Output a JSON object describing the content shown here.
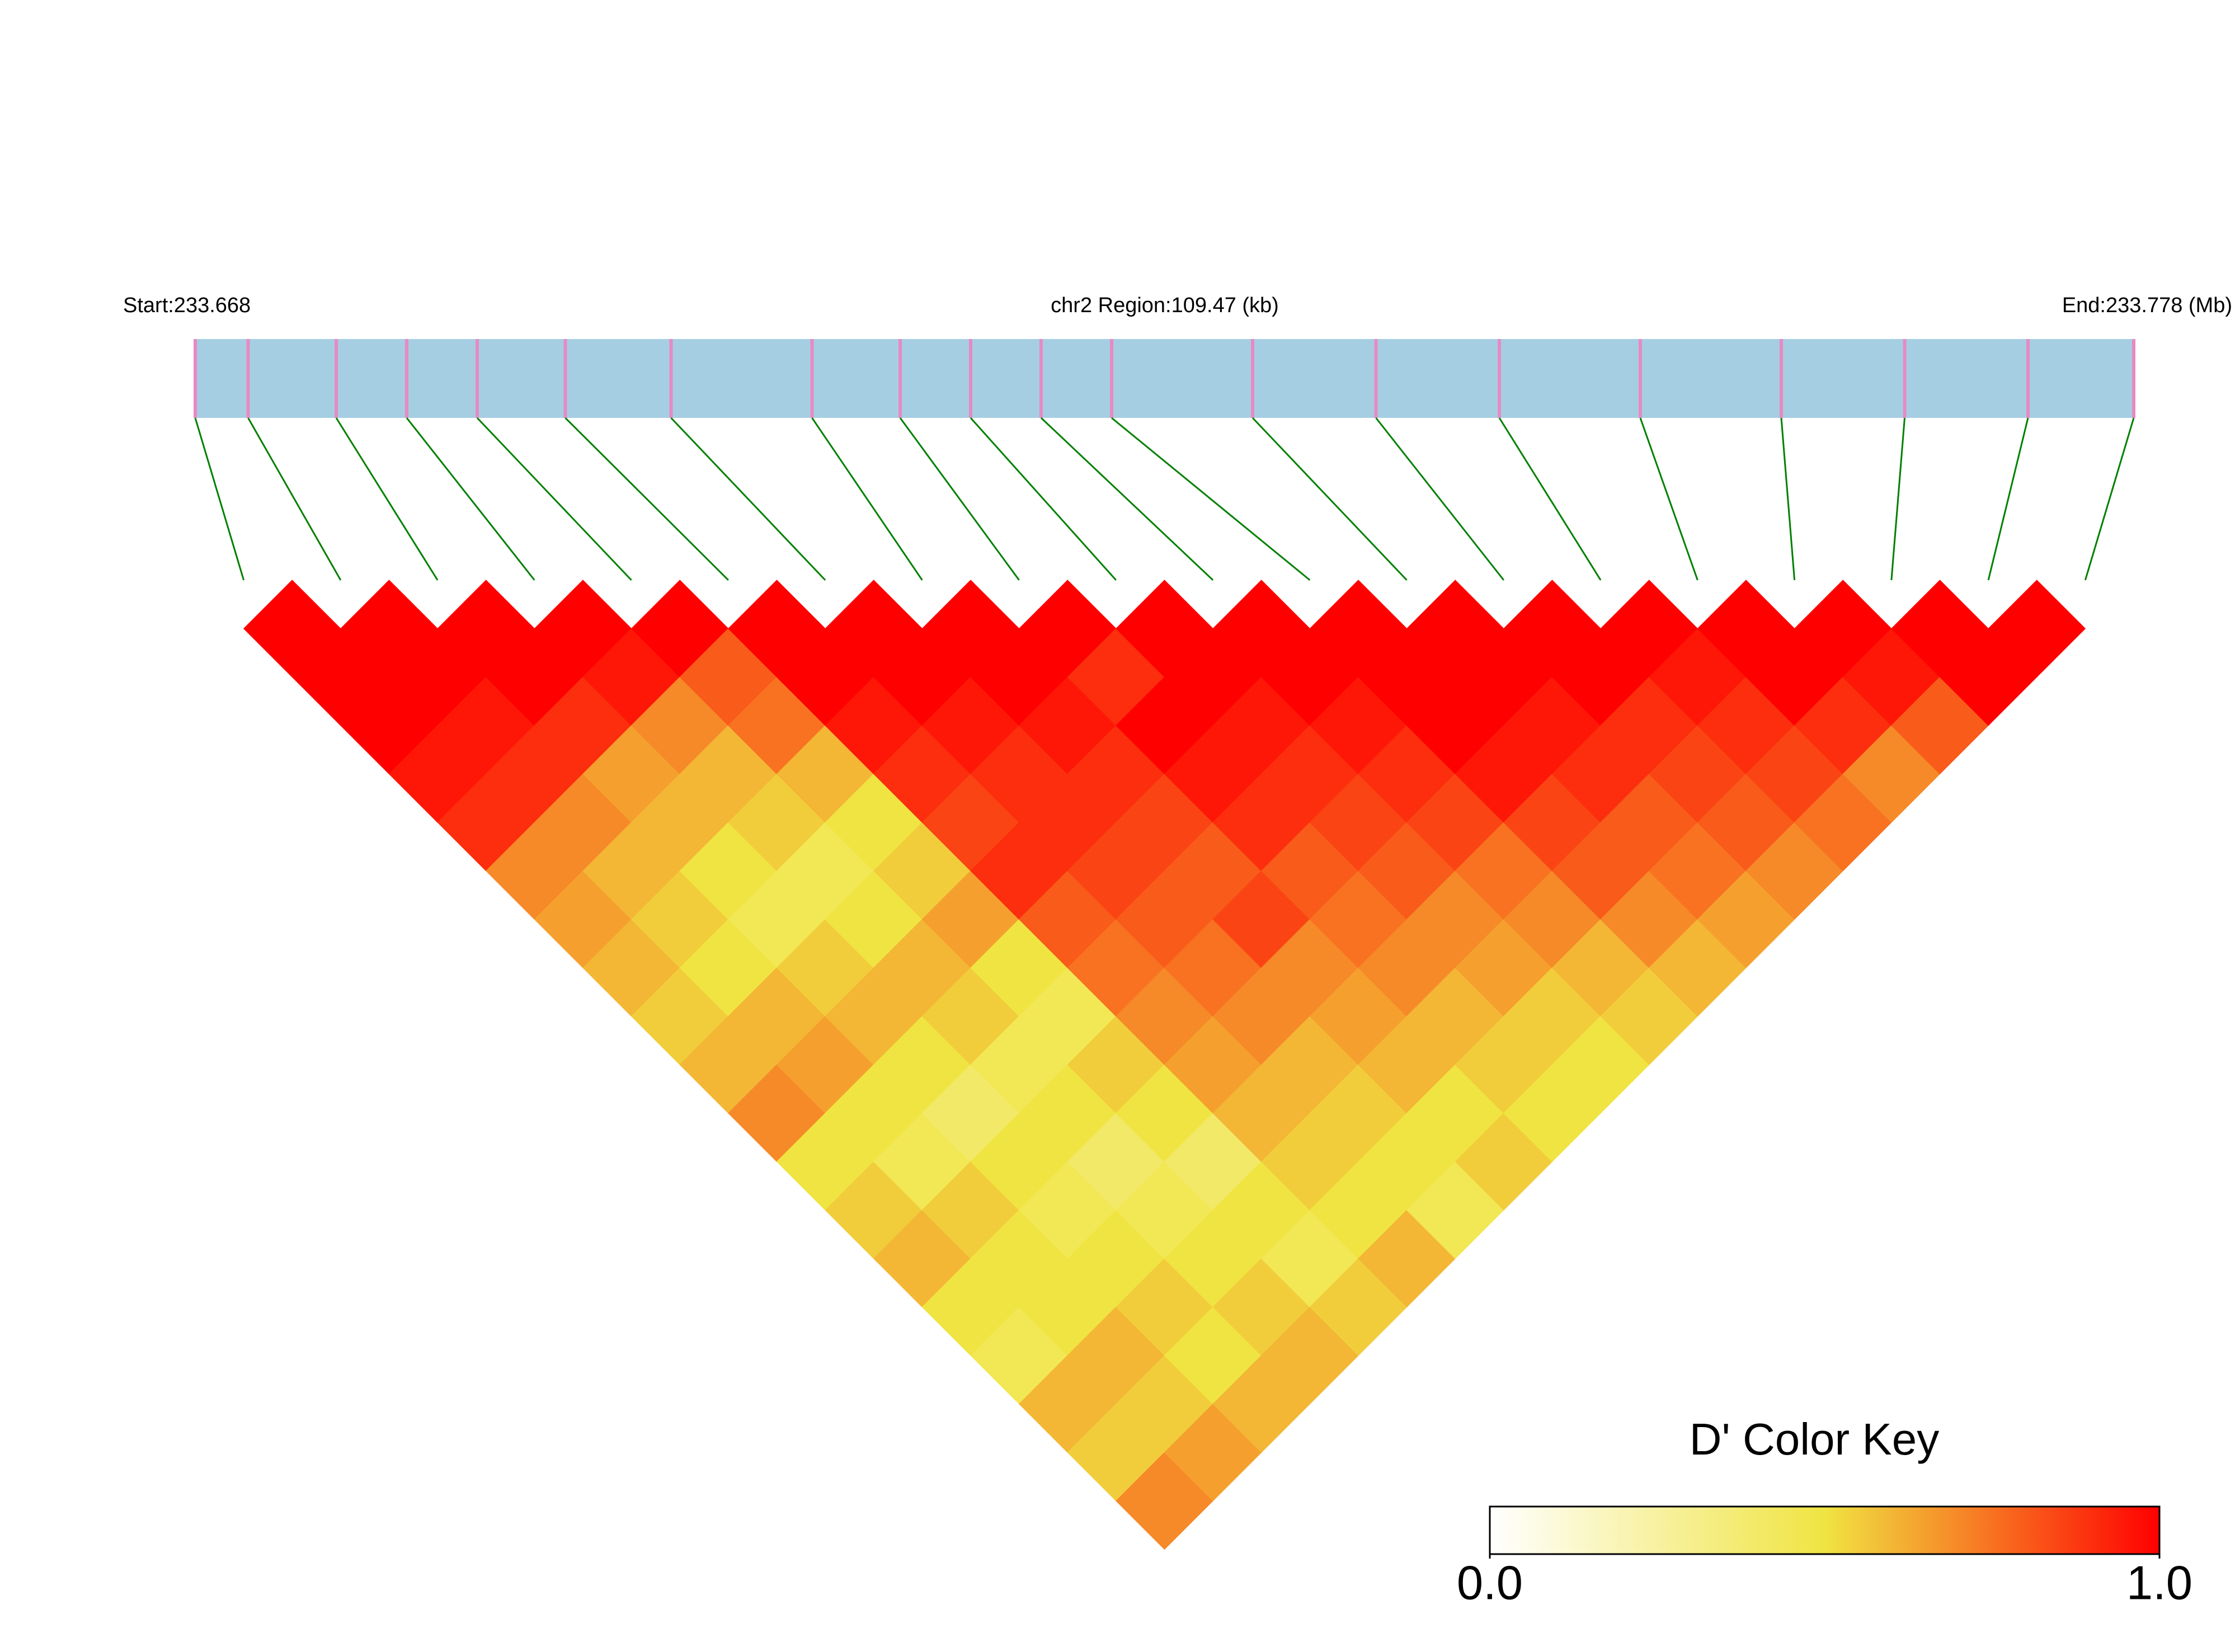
{
  "chart_data": {
    "type": "ld-heatmap",
    "start_label": "Start:233.668",
    "region_label": "chr2 Region:109.47 (kb)",
    "end_label": "End:233.778 (Mb)",
    "key_title": "D' Color Key",
    "xlim": [
      233.668,
      233.778
    ],
    "positions": [
      233.668,
      233.671,
      233.676,
      233.68,
      233.684,
      233.689,
      233.695,
      233.703,
      233.708,
      233.712,
      233.716,
      233.72,
      233.728,
      233.735,
      233.742,
      233.75,
      233.758,
      233.765,
      233.772,
      233.778
    ],
    "values": [
      [
        1,
        1,
        1,
        0.95,
        0.9,
        0.7,
        0.65,
        0.6,
        0.55,
        0.6,
        0.7,
        0.5,
        0.55,
        0.6,
        0.5,
        0.45,
        0.6,
        0.55,
        0.7
      ],
      [
        1,
        1,
        0.95,
        0.9,
        0.7,
        0.6,
        0.55,
        0.5,
        0.6,
        0.65,
        0.5,
        0.45,
        0.55,
        0.5,
        0.5,
        0.6,
        0.55,
        0.65
      ],
      [
        1,
        1,
        0.9,
        0.65,
        0.6,
        0.5,
        0.45,
        0.55,
        0.6,
        0.5,
        0.4,
        0.5,
        0.45,
        0.5,
        0.55,
        0.5,
        0.6
      ],
      [
        1,
        0.95,
        0.7,
        0.6,
        0.55,
        0.45,
        0.5,
        0.6,
        0.55,
        0.45,
        0.5,
        0.4,
        0.45,
        0.5,
        0.55,
        0.6
      ],
      [
        1,
        0.8,
        0.75,
        0.6,
        0.5,
        0.55,
        0.65,
        0.5,
        0.45,
        0.55,
        0.5,
        0.4,
        0.5,
        0.45,
        0.55
      ],
      [
        1,
        1,
        0.95,
        0.9,
        0.85,
        0.9,
        0.8,
        0.75,
        0.7,
        0.65,
        0.6,
        0.55,
        0.5,
        0.6
      ],
      [
        1,
        1,
        0.95,
        0.9,
        0.9,
        0.85,
        0.8,
        0.75,
        0.7,
        0.6,
        0.55,
        0.5,
        0.45
      ],
      [
        1,
        1,
        0.95,
        0.9,
        0.85,
        0.8,
        0.85,
        0.7,
        0.65,
        0.6,
        0.5,
        0.55
      ],
      [
        1,
        0.9,
        1,
        0.95,
        0.9,
        0.8,
        0.75,
        0.7,
        0.6,
        0.55,
        0.5
      ],
      [
        1,
        1,
        0.95,
        0.9,
        0.85,
        0.8,
        0.7,
        0.65,
        0.55,
        0.5
      ],
      [
        1,
        1,
        0.95,
        0.9,
        0.85,
        0.75,
        0.7,
        0.6,
        0.55
      ],
      [
        1,
        1,
        1,
        0.95,
        0.85,
        0.8,
        0.7,
        0.6
      ],
      [
        1,
        1,
        0.95,
        0.9,
        0.8,
        0.75,
        0.65
      ],
      [
        1,
        1,
        0.9,
        0.85,
        0.8,
        0.7
      ],
      [
        1,
        0.95,
        0.9,
        0.85,
        0.75
      ],
      [
        1,
        1,
        0.9,
        0.7
      ],
      [
        1,
        0.95,
        0.8
      ],
      [
        1,
        1
      ],
      [
        1
      ]
    ],
    "color_scale": [
      "#ffffff",
      "#f0e442",
      "#ff0000"
    ],
    "bar_color": "#a6cee3",
    "snp_color": "#e78ac3",
    "link_color": "#008000",
    "key_lim": [
      0,
      1
    ],
    "key_ticks": [
      {
        "value": 0,
        "label": "0.0"
      },
      {
        "value": 1,
        "label": "1.0"
      }
    ]
  }
}
